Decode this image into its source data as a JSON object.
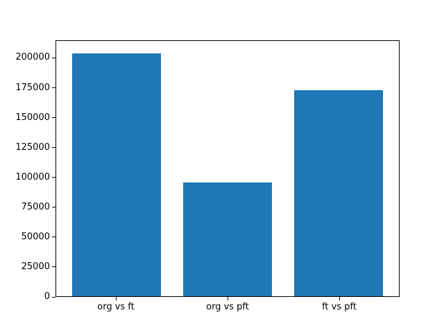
{
  "chart_data": {
    "type": "bar",
    "title": "",
    "xlabel": "",
    "ylabel": "",
    "categories": [
      "org vs ft",
      "org vs pft",
      "ft vs pft"
    ],
    "values": [
      204500,
      95700,
      173400
    ],
    "yticks": [
      0,
      25000,
      50000,
      75000,
      100000,
      125000,
      150000,
      175000,
      200000
    ],
    "ytick_labels": [
      "0",
      "25000",
      "50000",
      "75000",
      "100000",
      "125000",
      "150000",
      "175000",
      "200000"
    ],
    "ylim": [
      0,
      214725
    ],
    "bar_color": "#1f77b4",
    "axis_color": "#000000",
    "background_color": "#ffffff",
    "grid": false,
    "legend": null
  }
}
